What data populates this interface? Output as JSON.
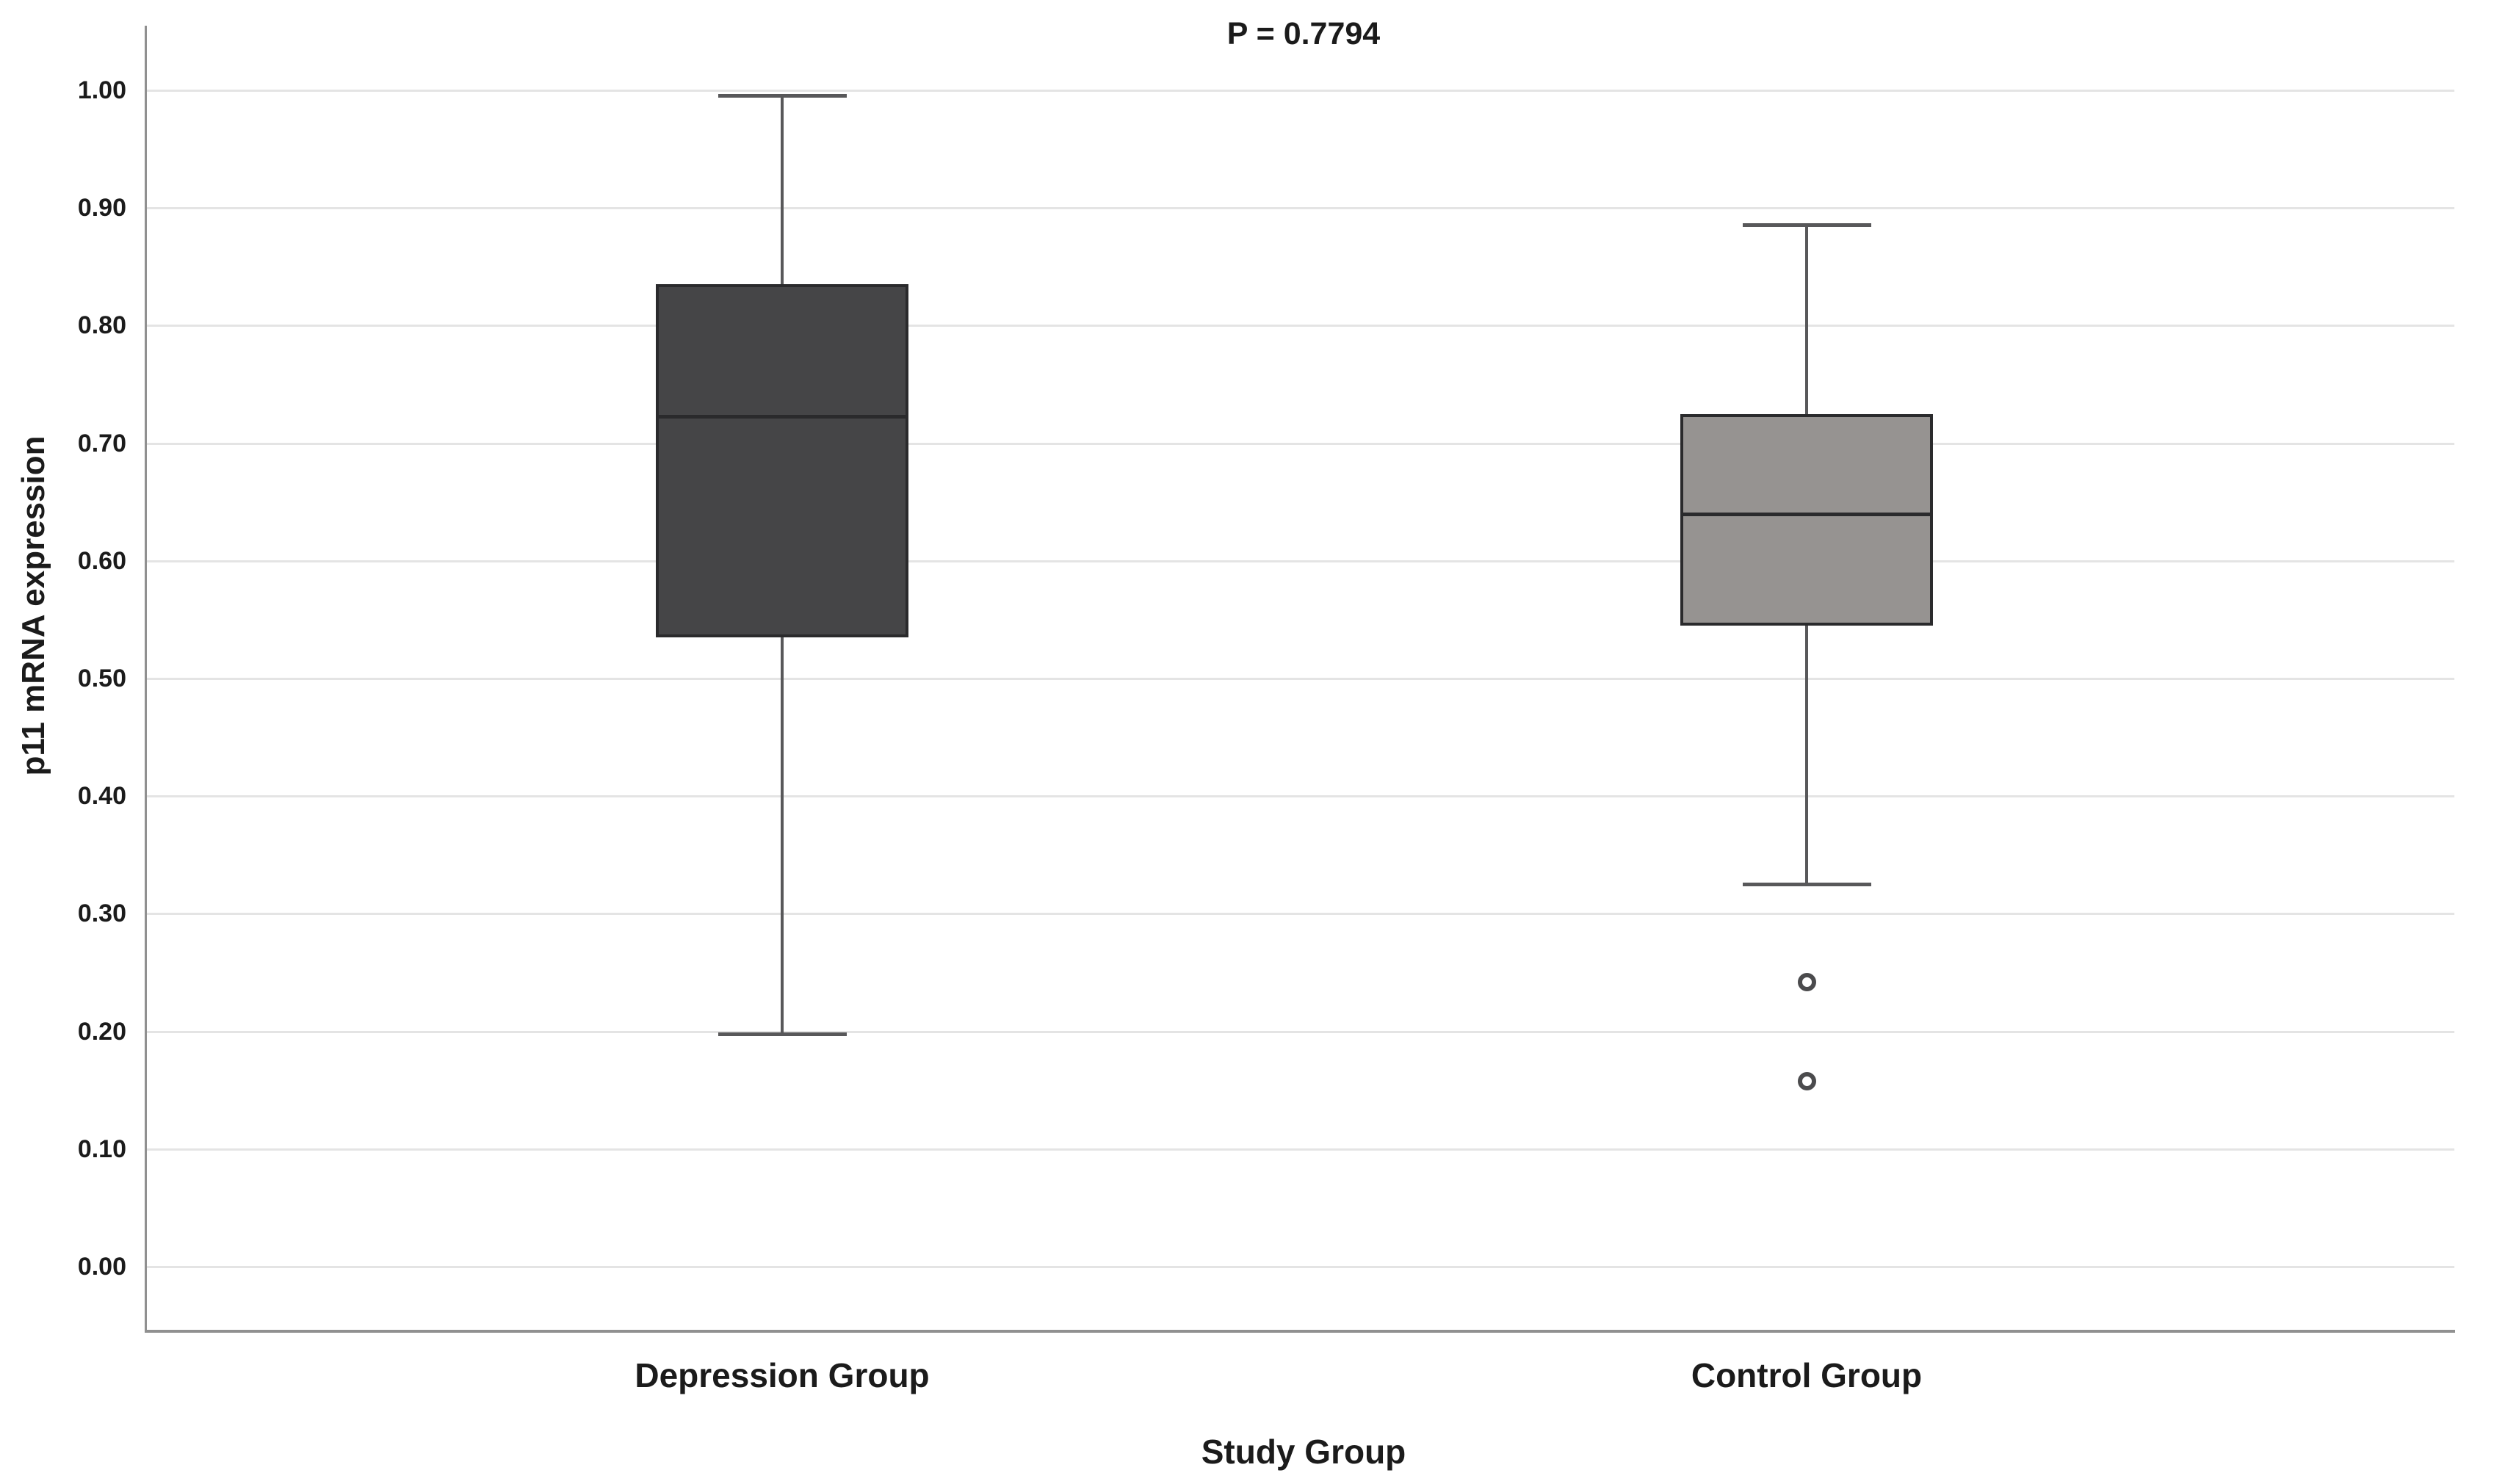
{
  "chart_data": {
    "type": "box",
    "title": "P = 0.7794",
    "xlabel": "Study Group",
    "ylabel": "p11 mRNA expression",
    "ylim": [
      0.0,
      1.0
    ],
    "y_ticks": [
      "0.00",
      "0.10",
      "0.20",
      "0.30",
      "0.40",
      "0.50",
      "0.60",
      "0.70",
      "0.80",
      "0.90",
      "1.00"
    ],
    "grid": "horizontal gridlines on",
    "legend": "none",
    "categories": [
      "Depression Group",
      "Control Group"
    ],
    "groups": [
      {
        "label": "Depression Group",
        "whisker_low": 0.198,
        "q1": 0.535,
        "median": 0.723,
        "q3": 0.835,
        "whisker_high": 0.995,
        "outliers": [],
        "fill_color": "#454547"
      },
      {
        "label": "Control Group",
        "whisker_low": 0.325,
        "q1": 0.545,
        "median": 0.64,
        "q3": 0.725,
        "whisker_high": 0.885,
        "outliers": [
          0.242,
          0.158
        ],
        "fill_color": "#969391"
      }
    ],
    "colors": {
      "gridline": "#e4e4e4",
      "axis": "#909090",
      "whisker": "#58585a",
      "box_border": "#2a2a2c",
      "text": "#1b1b1b",
      "background": "#ffffff"
    }
  }
}
